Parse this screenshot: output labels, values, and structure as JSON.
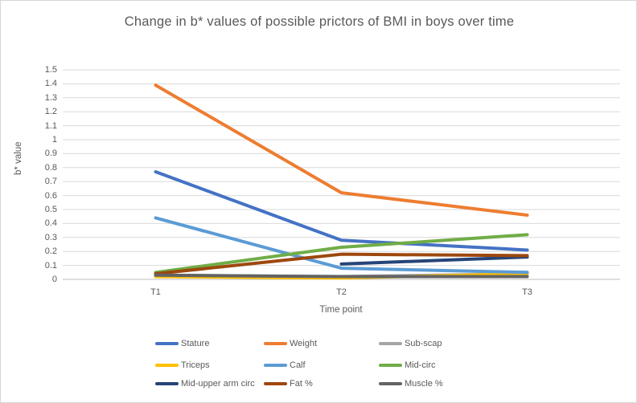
{
  "chart": {
    "title": "Change in b* values of possible prictors of BMI in boys over time",
    "x_axis_title": "Time point",
    "y_axis_title": "b* value"
  },
  "chart_data": {
    "type": "line",
    "categories": [
      "T1",
      "T2",
      "T3"
    ],
    "series": [
      {
        "name": "Stature",
        "color": "#4472C4",
        "values": [
          0.77,
          0.28,
          0.21
        ]
      },
      {
        "name": "Weight",
        "color": "#ED7D31",
        "values": [
          1.39,
          0.62,
          0.46
        ]
      },
      {
        "name": "Sub-scap",
        "color": "#A5A5A5",
        "values": [
          0.03,
          0.02,
          0.04
        ]
      },
      {
        "name": "Triceps",
        "color": "#FFC000",
        "values": [
          0.02,
          0.01,
          0.04
        ]
      },
      {
        "name": "Calf",
        "color": "#5B9BD5",
        "values": [
          0.44,
          0.08,
          0.05
        ]
      },
      {
        "name": "Mid-circ",
        "color": "#70AD47",
        "values": [
          0.05,
          0.23,
          0.32
        ]
      },
      {
        "name": "Mid-upper arm circ",
        "color": "#264478",
        "values": [
          null,
          0.11,
          0.16
        ]
      },
      {
        "name": "Fat %",
        "color": "#9E480E",
        "values": [
          0.04,
          0.18,
          0.17
        ]
      },
      {
        "name": "Muscle %",
        "color": "#636363",
        "values": [
          0.03,
          0.02,
          0.02
        ]
      }
    ],
    "y_ticks": [
      "0",
      "0.1",
      "0.2",
      "0.3",
      "0.4",
      "0.5",
      "0.6",
      "0.7",
      "0.8",
      "0.9",
      "1",
      "1.1",
      "1.2",
      "1.3",
      "1.4",
      "1.5"
    ],
    "ylim": [
      0,
      1.5
    ],
    "grid": true,
    "legend_position": "bottom",
    "legend_columns": 3
  },
  "colors": {
    "text": "#595959",
    "gridline": "#D9D9D9",
    "axis_line": "#BFBFBF",
    "border": "#D7D7D7",
    "background": "#FFFFFF"
  }
}
